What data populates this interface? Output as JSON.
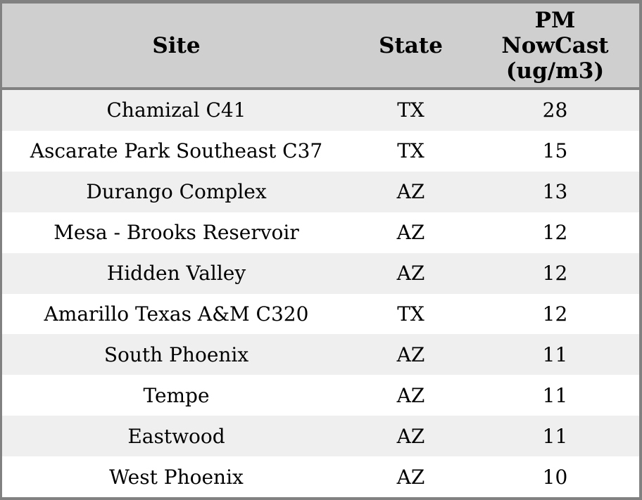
{
  "chart_data": {
    "type": "table",
    "title": "",
    "columns": [
      "Site",
      "State",
      "PM NowCast (ug/m3)"
    ],
    "rows": [
      [
        "Chamizal C41",
        "TX",
        28
      ],
      [
        "Ascarate Park Southeast C37",
        "TX",
        15
      ],
      [
        "Durango Complex",
        "AZ",
        13
      ],
      [
        "Mesa - Brooks Reservoir",
        "AZ",
        12
      ],
      [
        "Hidden Valley",
        "AZ",
        12
      ],
      [
        "Amarillo Texas A&M C320",
        "TX",
        12
      ],
      [
        "South Phoenix",
        "AZ",
        11
      ],
      [
        "Tempe",
        "AZ",
        11
      ],
      [
        "Eastwood",
        "AZ",
        11
      ],
      [
        "West Phoenix",
        "AZ",
        10
      ]
    ],
    "layout": {
      "zebra_striping": true,
      "all_cells_centered": true
    }
  },
  "colors": {
    "border": "#818181",
    "header_bg": "#cfcfcf",
    "row_alt": "#efefef",
    "row_bg": "#ffffff",
    "text": "#000000"
  }
}
